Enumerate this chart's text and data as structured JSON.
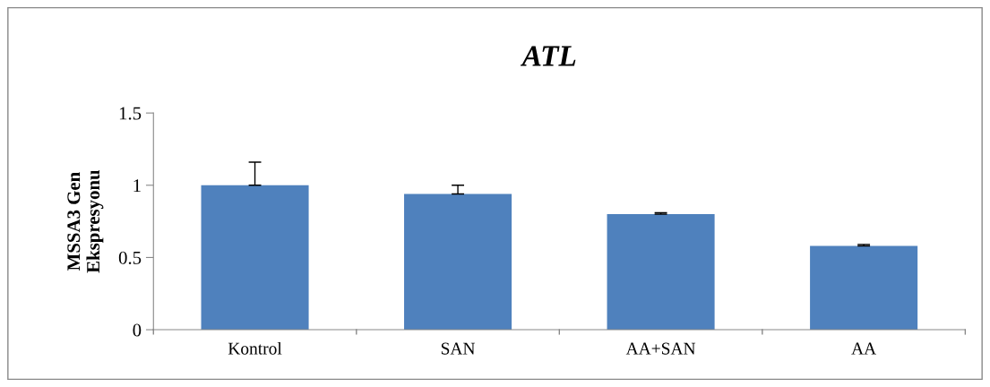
{
  "chart_data": {
    "type": "bar",
    "title": "ATL",
    "ylabel": "MSSA3 Gen\nEkspresyonu",
    "categories": [
      "Kontrol",
      "SAN",
      "AA+SAN",
      "AA"
    ],
    "values": [
      1.0,
      0.94,
      0.8,
      0.58
    ],
    "errors": [
      [
        1.0,
        1.16
      ],
      [
        0.94,
        1.0
      ],
      [
        0.8,
        0.81
      ],
      [
        0.58,
        0.59
      ]
    ],
    "color": "#4f81bd",
    "ylim": [
      0,
      1.5
    ],
    "yticks": [
      0,
      0.5,
      1,
      1.5
    ],
    "grid": false,
    "legend": false
  }
}
